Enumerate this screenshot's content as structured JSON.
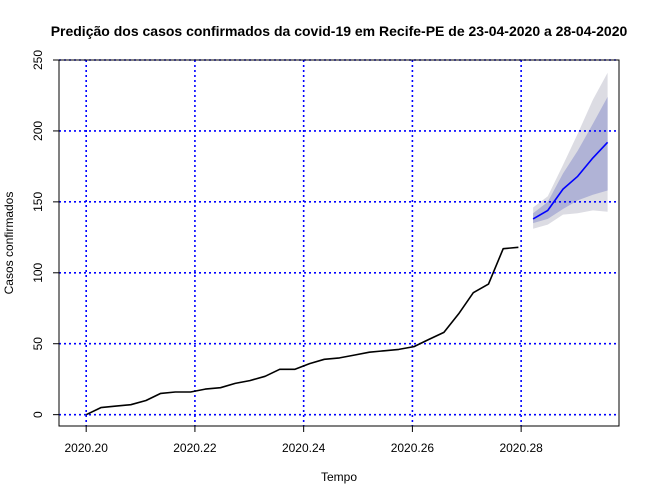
{
  "chart_data": {
    "type": "line",
    "title": "Predição dos casos confirmados da covid-19 em Recife-PE de 23-04-2020 a 28-04-2020",
    "xlabel": "Tempo",
    "ylabel": "Casos confirmados",
    "xlim": [
      2020.195,
      2020.298
    ],
    "ylim": [
      -8,
      250
    ],
    "x_ticks": [
      2020.2,
      2020.22,
      2020.24,
      2020.26,
      2020.28
    ],
    "x_tick_labels": [
      "2020.20",
      "2020.22",
      "2020.24",
      "2020.26",
      "2020.28"
    ],
    "y_ticks": [
      0,
      50,
      100,
      150,
      200,
      250
    ],
    "y_tick_labels": [
      "0",
      "50",
      "100",
      "150",
      "200",
      "250"
    ],
    "grid": true,
    "grid_x": [
      2020.2,
      2020.22,
      2020.24,
      2020.26,
      2020.28
    ],
    "grid_y": [
      0,
      50,
      100,
      150,
      200,
      250
    ],
    "colors": {
      "observed": "#000000",
      "forecast": "#0000ff",
      "grid": "#0000ff",
      "band_95": "#dcdce3",
      "band_80": "#b0b3d6"
    },
    "series": [
      {
        "role": "observed",
        "x": [
          2020.2,
          2020.2027,
          2020.2055,
          2020.2082,
          2020.211,
          2020.2137,
          2020.2164,
          2020.2192,
          2020.2219,
          2020.2247,
          2020.2274,
          2020.2301,
          2020.2329,
          2020.2356,
          2020.2384,
          2020.2411,
          2020.2438,
          2020.2466,
          2020.2493,
          2020.2521,
          2020.2548,
          2020.2575,
          2020.2603,
          2020.263,
          2020.2658,
          2020.2685,
          2020.2712,
          2020.274,
          2020.2767,
          2020.2795
        ],
        "values": [
          0,
          5,
          6,
          7,
          10,
          15,
          16,
          16,
          18,
          19,
          22,
          24,
          27,
          32,
          32,
          36,
          39,
          40,
          42,
          44,
          45,
          46,
          48,
          53,
          58,
          71,
          86,
          92,
          117,
          118
        ]
      },
      {
        "role": "forecast",
        "x": [
          2020.2822,
          2020.2849,
          2020.2877,
          2020.2904,
          2020.2932,
          2020.2959
        ],
        "values": [
          138,
          144,
          159,
          168,
          181,
          192
        ],
        "lower80": [
          135,
          138,
          145,
          151,
          155,
          158
        ],
        "upper80": [
          142,
          150,
          170,
          186,
          205,
          224
        ],
        "lower95": [
          131,
          134,
          141,
          142,
          144,
          143
        ],
        "upper95": [
          146,
          154,
          176,
          198,
          222,
          241
        ]
      }
    ]
  }
}
